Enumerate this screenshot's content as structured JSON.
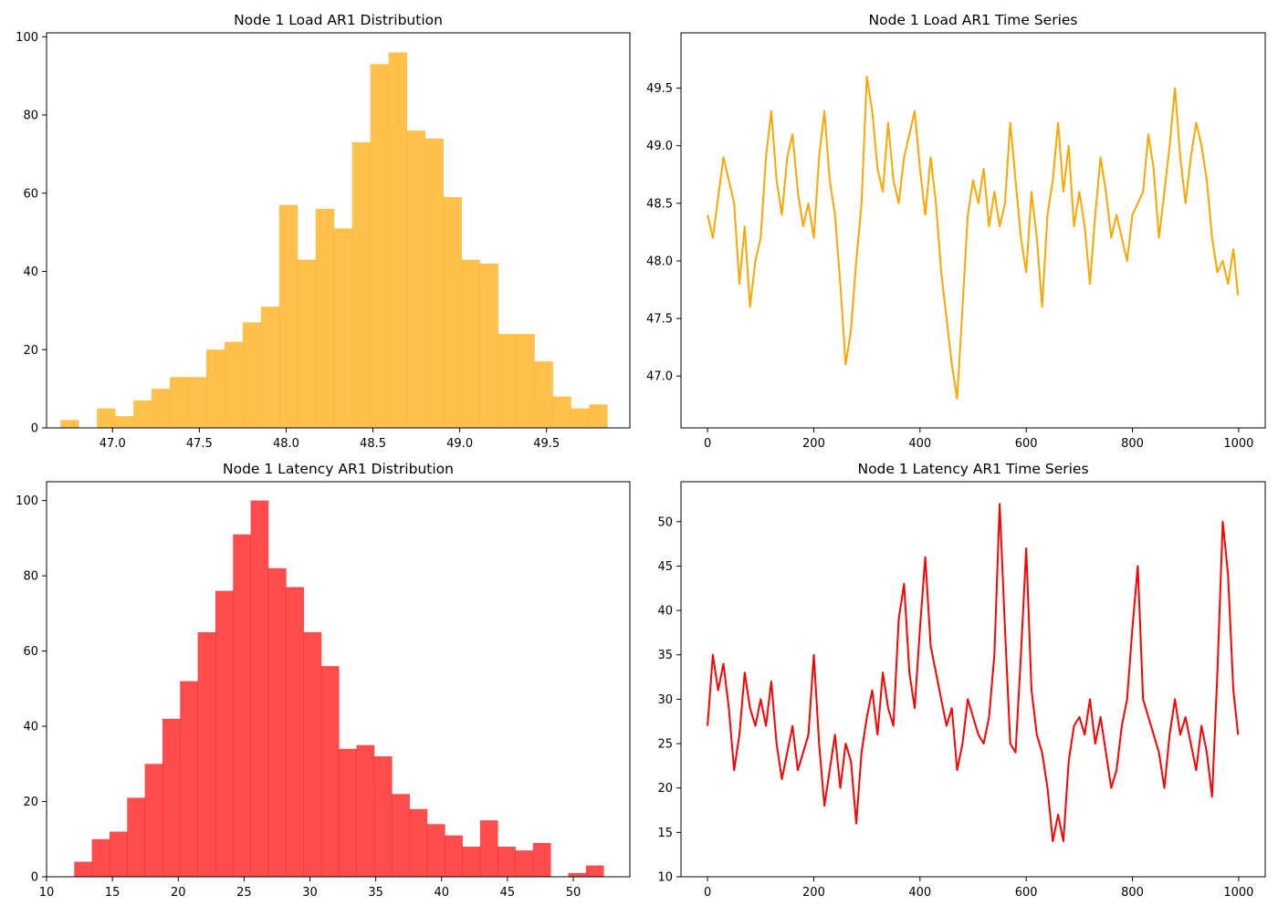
{
  "figure": {
    "background": "#ffffff"
  },
  "chart_data": [
    {
      "id": "load-hist",
      "type": "bar",
      "title": "Node 1 Load AR1 Distribution",
      "xlabel": "",
      "ylabel": "",
      "color": "#FFA500",
      "opacity": 0.7,
      "xlim": [
        46.62,
        49.98
      ],
      "ylim": [
        0,
        101
      ],
      "bin_edges": [
        46.7,
        46.805,
        46.91,
        47.015,
        47.12,
        47.225,
        47.33,
        47.435,
        47.54,
        47.645,
        47.75,
        47.855,
        47.96,
        48.065,
        48.17,
        48.275,
        48.38,
        48.485,
        48.59,
        48.695,
        48.8,
        48.905,
        49.01,
        49.115,
        49.22,
        49.325,
        49.43,
        49.535,
        49.64,
        49.745,
        49.85
      ],
      "values": [
        2,
        0,
        5,
        3,
        7,
        10,
        13,
        13,
        20,
        22,
        27,
        31,
        57,
        43,
        56,
        51,
        73,
        93,
        96,
        76,
        74,
        59,
        43,
        42,
        24,
        24,
        17,
        8,
        5,
        6
      ],
      "xticks": [
        47.0,
        47.5,
        48.0,
        48.5,
        49.0,
        49.5
      ],
      "xtick_labels": [
        "47.0",
        "47.5",
        "48.0",
        "48.5",
        "49.0",
        "49.5"
      ],
      "yticks": [
        0,
        20,
        40,
        60,
        80,
        100
      ],
      "ytick_labels": [
        "0",
        "20",
        "40",
        "60",
        "80",
        "100"
      ]
    },
    {
      "id": "load-ts",
      "type": "line",
      "title": "Node 1 Load AR1 Time Series",
      "xlabel": "",
      "ylabel": "",
      "color": "#FFA500",
      "xlim": [
        -50,
        1050
      ],
      "ylim": [
        46.55,
        49.98
      ],
      "x": [
        0,
        10,
        20,
        30,
        40,
        50,
        60,
        70,
        80,
        90,
        100,
        110,
        120,
        130,
        140,
        150,
        160,
        170,
        180,
        190,
        200,
        210,
        220,
        230,
        240,
        250,
        260,
        270,
        280,
        290,
        300,
        310,
        320,
        330,
        340,
        350,
        360,
        370,
        380,
        390,
        400,
        410,
        420,
        430,
        440,
        450,
        460,
        470,
        480,
        490,
        500,
        510,
        520,
        530,
        540,
        550,
        560,
        570,
        580,
        590,
        600,
        610,
        620,
        630,
        640,
        650,
        660,
        670,
        680,
        690,
        700,
        710,
        720,
        730,
        740,
        750,
        760,
        770,
        780,
        790,
        800,
        810,
        820,
        830,
        840,
        850,
        860,
        870,
        880,
        890,
        900,
        910,
        920,
        930,
        940,
        950,
        960,
        970,
        980,
        990,
        999
      ],
      "values": [
        48.4,
        48.2,
        48.55,
        48.9,
        48.7,
        48.5,
        47.8,
        48.3,
        47.6,
        48.0,
        48.2,
        48.9,
        49.3,
        48.7,
        48.4,
        48.9,
        49.1,
        48.6,
        48.3,
        48.5,
        48.2,
        48.9,
        49.3,
        48.7,
        48.4,
        47.8,
        47.1,
        47.4,
        48.0,
        48.5,
        49.6,
        49.3,
        48.8,
        48.6,
        49.2,
        48.7,
        48.5,
        48.9,
        49.1,
        49.3,
        48.8,
        48.4,
        48.9,
        48.5,
        47.9,
        47.5,
        47.1,
        46.8,
        47.6,
        48.4,
        48.7,
        48.5,
        48.8,
        48.3,
        48.6,
        48.3,
        48.5,
        49.2,
        48.7,
        48.2,
        47.9,
        48.6,
        48.2,
        47.6,
        48.4,
        48.7,
        49.2,
        48.6,
        49.0,
        48.3,
        48.6,
        48.3,
        47.8,
        48.4,
        48.9,
        48.6,
        48.2,
        48.4,
        48.2,
        48.0,
        48.4,
        48.5,
        48.6,
        49.1,
        48.8,
        48.2,
        48.6,
        49.0,
        49.5,
        48.9,
        48.5,
        48.9,
        49.2,
        49.0,
        48.7,
        48.2,
        47.9,
        48.0,
        47.8,
        48.1,
        47.7
      ],
      "xticks": [
        0,
        200,
        400,
        600,
        800,
        1000
      ],
      "xtick_labels": [
        "0",
        "200",
        "400",
        "600",
        "800",
        "1000"
      ],
      "yticks": [
        47.0,
        47.5,
        48.0,
        48.5,
        49.0,
        49.5
      ],
      "ytick_labels": [
        "47.0",
        "47.5",
        "48.0",
        "48.5",
        "49.0",
        "49.5"
      ]
    },
    {
      "id": "latency-hist",
      "type": "bar",
      "title": "Node 1 Latency AR1 Distribution",
      "xlabel": "",
      "ylabel": "",
      "color": "#FF0000",
      "opacity": 0.7,
      "xlim": [
        10,
        54.3
      ],
      "ylim": [
        0,
        105
      ],
      "bin_edges": [
        12.1,
        13.44,
        14.78,
        16.12,
        17.46,
        18.8,
        20.14,
        21.48,
        22.82,
        24.16,
        25.5,
        26.84,
        28.18,
        29.52,
        30.86,
        32.2,
        33.54,
        34.88,
        36.22,
        37.56,
        38.9,
        40.24,
        41.58,
        42.92,
        44.26,
        45.6,
        46.94,
        48.28,
        49.62,
        50.96,
        52.3
      ],
      "values": [
        4,
        10,
        12,
        21,
        30,
        42,
        52,
        65,
        76,
        91,
        100,
        82,
        77,
        65,
        56,
        34,
        35,
        32,
        22,
        18,
        14,
        11,
        8,
        15,
        8,
        7,
        9,
        0,
        1,
        3
      ],
      "xticks": [
        10,
        15,
        20,
        25,
        30,
        35,
        40,
        45,
        50
      ],
      "xtick_labels": [
        "10",
        "15",
        "20",
        "25",
        "30",
        "35",
        "40",
        "45",
        "50"
      ],
      "yticks": [
        0,
        20,
        40,
        60,
        80,
        100
      ],
      "ytick_labels": [
        "0",
        "20",
        "40",
        "60",
        "80",
        "100"
      ]
    },
    {
      "id": "latency-ts",
      "type": "line",
      "title": "Node 1 Latency AR1 Time Series",
      "xlabel": "",
      "ylabel": "",
      "color": "#FF0000",
      "xlim": [
        -50,
        1050
      ],
      "ylim": [
        10,
        54.5
      ],
      "x": [
        0,
        10,
        20,
        30,
        40,
        50,
        60,
        70,
        80,
        90,
        100,
        110,
        120,
        130,
        140,
        150,
        160,
        170,
        180,
        190,
        200,
        210,
        220,
        230,
        240,
        250,
        260,
        270,
        280,
        290,
        300,
        310,
        320,
        330,
        340,
        350,
        360,
        370,
        380,
        390,
        400,
        410,
        420,
        430,
        440,
        450,
        460,
        470,
        480,
        490,
        500,
        510,
        520,
        530,
        540,
        550,
        560,
        570,
        580,
        590,
        600,
        610,
        620,
        630,
        640,
        650,
        660,
        670,
        680,
        690,
        700,
        710,
        720,
        730,
        740,
        750,
        760,
        770,
        780,
        790,
        800,
        810,
        820,
        830,
        840,
        850,
        860,
        870,
        880,
        890,
        900,
        910,
        920,
        930,
        940,
        950,
        960,
        970,
        980,
        990,
        999
      ],
      "values": [
        27,
        35,
        31,
        34,
        29,
        22,
        26,
        33,
        29,
        27,
        30,
        27,
        32,
        25,
        21,
        24,
        27,
        22,
        24,
        26,
        35,
        25,
        18,
        22,
        26,
        20,
        25,
        23,
        16,
        24,
        28,
        31,
        26,
        33,
        29,
        27,
        39,
        43,
        33,
        29,
        38,
        46,
        36,
        33,
        30,
        27,
        29,
        22,
        25,
        30,
        28,
        26,
        25,
        28,
        35,
        52,
        38,
        25,
        24,
        35,
        47,
        31,
        26,
        24,
        20,
        14,
        17,
        14,
        23,
        27,
        28,
        26,
        30,
        25,
        28,
        24,
        20,
        22,
        27,
        30,
        38,
        45,
        30,
        28,
        26,
        24,
        20,
        26,
        30,
        26,
        28,
        25,
        22,
        27,
        24,
        19,
        33,
        50,
        44,
        31,
        26
      ],
      "xticks": [
        0,
        200,
        400,
        600,
        800,
        1000
      ],
      "xtick_labels": [
        "0",
        "200",
        "400",
        "600",
        "800",
        "1000"
      ],
      "yticks": [
        10,
        15,
        20,
        25,
        30,
        35,
        40,
        45,
        50
      ],
      "ytick_labels": [
        "10",
        "15",
        "20",
        "25",
        "30",
        "35",
        "40",
        "45",
        "50"
      ]
    }
  ]
}
